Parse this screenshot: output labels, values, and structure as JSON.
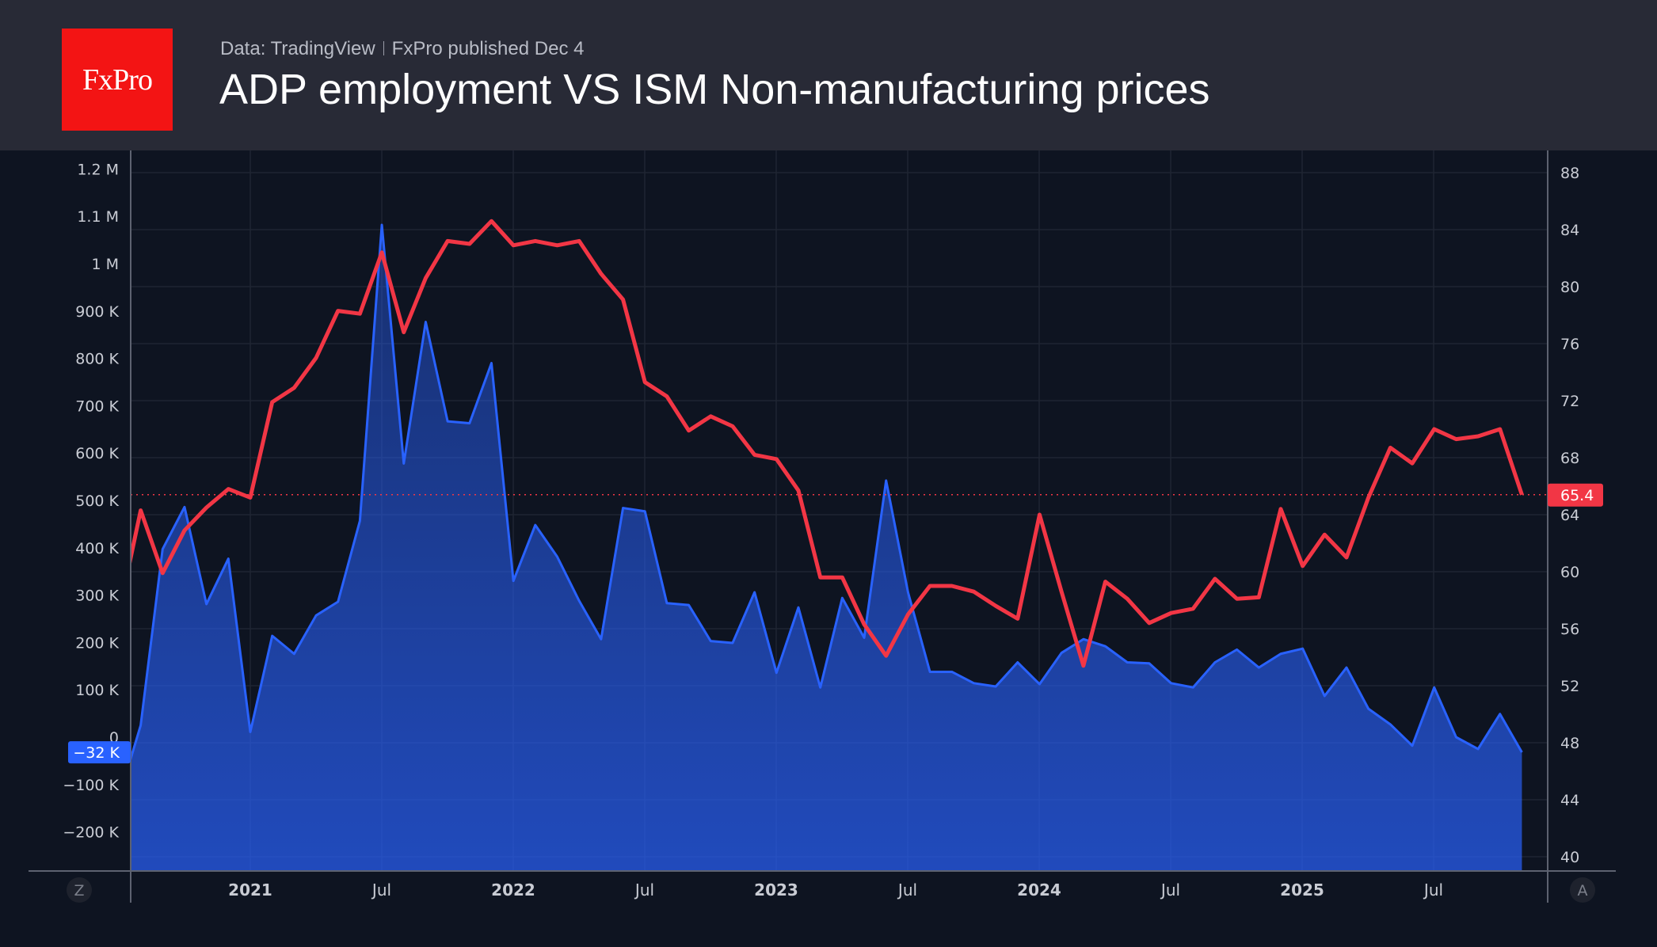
{
  "header": {
    "logo_text": "FxPro",
    "source": "Data: TradingView",
    "published": "FxPro published Dec 4",
    "title": "ADP employment VS ISM Non-manufacturing prices"
  },
  "colors": {
    "adp": "#2962ff",
    "ism": "#f23645",
    "logo": "#f31414"
  },
  "axis_buttons": {
    "left": "Z",
    "right": "A"
  },
  "chart_data": {
    "type": "line",
    "x_start": "2020-07",
    "x_tick_labels": [
      "2021",
      "Jul",
      "2022",
      "Jul",
      "2023",
      "Jul",
      "2024",
      "Jul",
      "2025",
      "Jul"
    ],
    "left_axis": {
      "ticks": [
        "1.2 M",
        "1.1 M",
        "1 M",
        "900 K",
        "800 K",
        "700 K",
        "600 K",
        "500 K",
        "400 K",
        "300 K",
        "200 K",
        "100 K",
        "0",
        "−100 K",
        "−200 K"
      ],
      "tick_values": [
        1200,
        1100,
        1000,
        900,
        800,
        700,
        600,
        500,
        400,
        300,
        200,
        100,
        0,
        -100,
        -200
      ],
      "unit": "K"
    },
    "right_axis": {
      "ticks": [
        "88",
        "84",
        "80",
        "76",
        "72",
        "68",
        "64",
        "60",
        "56",
        "52",
        "48",
        "44",
        "40"
      ],
      "tick_values": [
        88,
        84,
        80,
        76,
        72,
        68,
        64,
        60,
        56,
        52,
        48,
        44,
        40
      ],
      "ylim": [
        37.5,
        90
      ]
    },
    "grid": true,
    "series": [
      {
        "key": "adp",
        "axis": "left",
        "style": "area",
        "last_label": "−32 K",
        "values": [
          -130,
          25,
          397,
          486,
          281,
          377,
          11,
          214,
          176,
          257,
          286,
          457,
          1082,
          578,
          877,
          667,
          663,
          790,
          330,
          448,
          381,
          288,
          207,
          484,
          477,
          283,
          279,
          203,
          199,
          306,
          136,
          274,
          105,
          294,
          210,
          542,
          306,
          138,
          138,
          114,
          107,
          158,
          112,
          178,
          207,
          192,
          158,
          156,
          114,
          105,
          158,
          185,
          147,
          176,
          187,
          87,
          147,
          60,
          27,
          -18,
          105,
          0,
          -25,
          49,
          -32
        ]
      },
      {
        "key": "ism",
        "axis": "right",
        "style": "line",
        "last_label": "65.4",
        "values": [
          57.0,
          64.3,
          59.9,
          62.9,
          64.5,
          65.8,
          65.2,
          71.9,
          72.9,
          75.0,
          78.3,
          78.1,
          82.4,
          76.8,
          80.6,
          83.2,
          83.0,
          84.6,
          82.9,
          83.2,
          82.9,
          83.2,
          80.9,
          79.1,
          73.3,
          72.3,
          69.9,
          70.9,
          70.2,
          68.2,
          67.9,
          65.7,
          59.6,
          59.6,
          56.3,
          54.1,
          57.0,
          59.0,
          59.0,
          58.6,
          57.6,
          56.7,
          64.0,
          58.6,
          53.4,
          59.3,
          58.1,
          56.4,
          57.1,
          57.4,
          59.5,
          58.1,
          58.2,
          64.4,
          60.4,
          62.6,
          61.0,
          65.2,
          68.7,
          67.6,
          70.0,
          69.3,
          69.5,
          70.0,
          65.4
        ]
      }
    ]
  }
}
